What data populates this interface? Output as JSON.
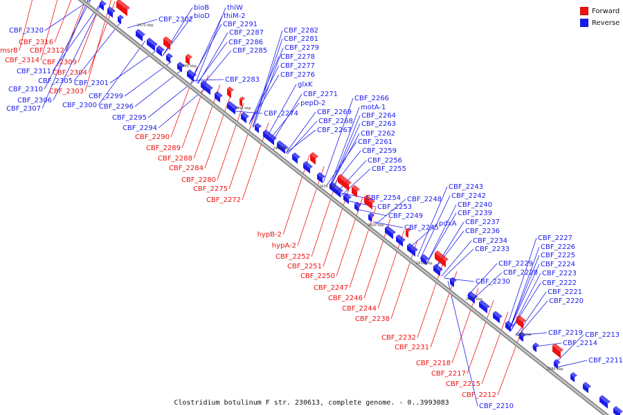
{
  "caption": "Clostridium botulinum F str. 230613, complete genome. - 0..3993083",
  "legend": {
    "forward_label": "Forward",
    "reverse_label": "Reverse",
    "forward_color": "#ee1111",
    "reverse_color": "#1a1aee"
  },
  "ticks": [
    "2470 kbp",
    "2460 kbp",
    "2450 kbp",
    "2440 kbp",
    "2430 kbp",
    "2420 kbp",
    "2410 kbp",
    "2400 kbp",
    "2390 kbp",
    "2380 kbp"
  ],
  "forward_labels": [
    "CBF_2316",
    "msrB",
    "CBF_2314",
    "CBF_2312",
    "CBF_2309",
    "CBF_2304",
    "CBF_2303",
    "CBF_2290",
    "CBF_2289",
    "CBF_2288",
    "CBF_2284",
    "CBF_2280",
    "CBF_2275",
    "CBF_2272",
    "hypB-2",
    "hypA-2",
    "CBF_2252",
    "CBF_2251",
    "CBF_2250",
    "CBF_2247",
    "CBF_2246",
    "CBF_2244",
    "CBF_2238",
    "CBF_2232",
    "CBF_2231",
    "CBF_2218",
    "CBF_2217",
    "CBF_2215",
    "CBF_2212"
  ],
  "reverse_left_labels": [
    "CBF_2320",
    "CBF_2311",
    "CBF_2310",
    "CBF_2305",
    "CBF_2306",
    "CBF_2307",
    "CBF_2301",
    "CBF_2300",
    "CBF_2299",
    "CBF_2296",
    "CBF_2295",
    "CBF_2294"
  ],
  "reverse_right_labels": [
    "bioB",
    "bioD",
    "CBF_2302",
    "thiW",
    "thiM-2",
    "CBF_2291",
    "CBF_2287",
    "CBF_2286",
    "CBF_2285",
    "CBF_2282",
    "CBF_2281",
    "CBF_2279",
    "CBF_2278",
    "CBF_2277",
    "CBF_2276",
    "CBF_2283",
    "glxK",
    "CBF_2271",
    "pepD-2",
    "CBF_2266",
    "CBF_2269",
    "CBF_2274",
    "motA-1",
    "CBF_2268",
    "CBF_2264",
    "CBF_2267",
    "CBF_2263",
    "CBF_2262",
    "CBF_2261",
    "CBF_2259",
    "CBF_2256",
    "CBF_2255",
    "CBF_2243",
    "CBF_2254",
    "CBF_2248",
    "CBF_2242",
    "CBF_2253",
    "CBF_2240",
    "CBF_2249",
    "CBF_2239",
    "pdxA",
    "CBF_2245",
    "CBF_2237",
    "CBF_2236",
    "CBF_2227",
    "CBF_2234",
    "CBF_2226",
    "CBF_2233",
    "CBF_2225",
    "CBF_2229",
    "CBF_2224",
    "CBF_2228",
    "CBF_2223",
    "CBF_2230",
    "CBF_2222",
    "CBF_2221",
    "CBF_2220",
    "CBF_2219",
    "CBF_2213",
    "CBF_2214",
    "CBF_2211",
    "CBF_2210"
  ]
}
